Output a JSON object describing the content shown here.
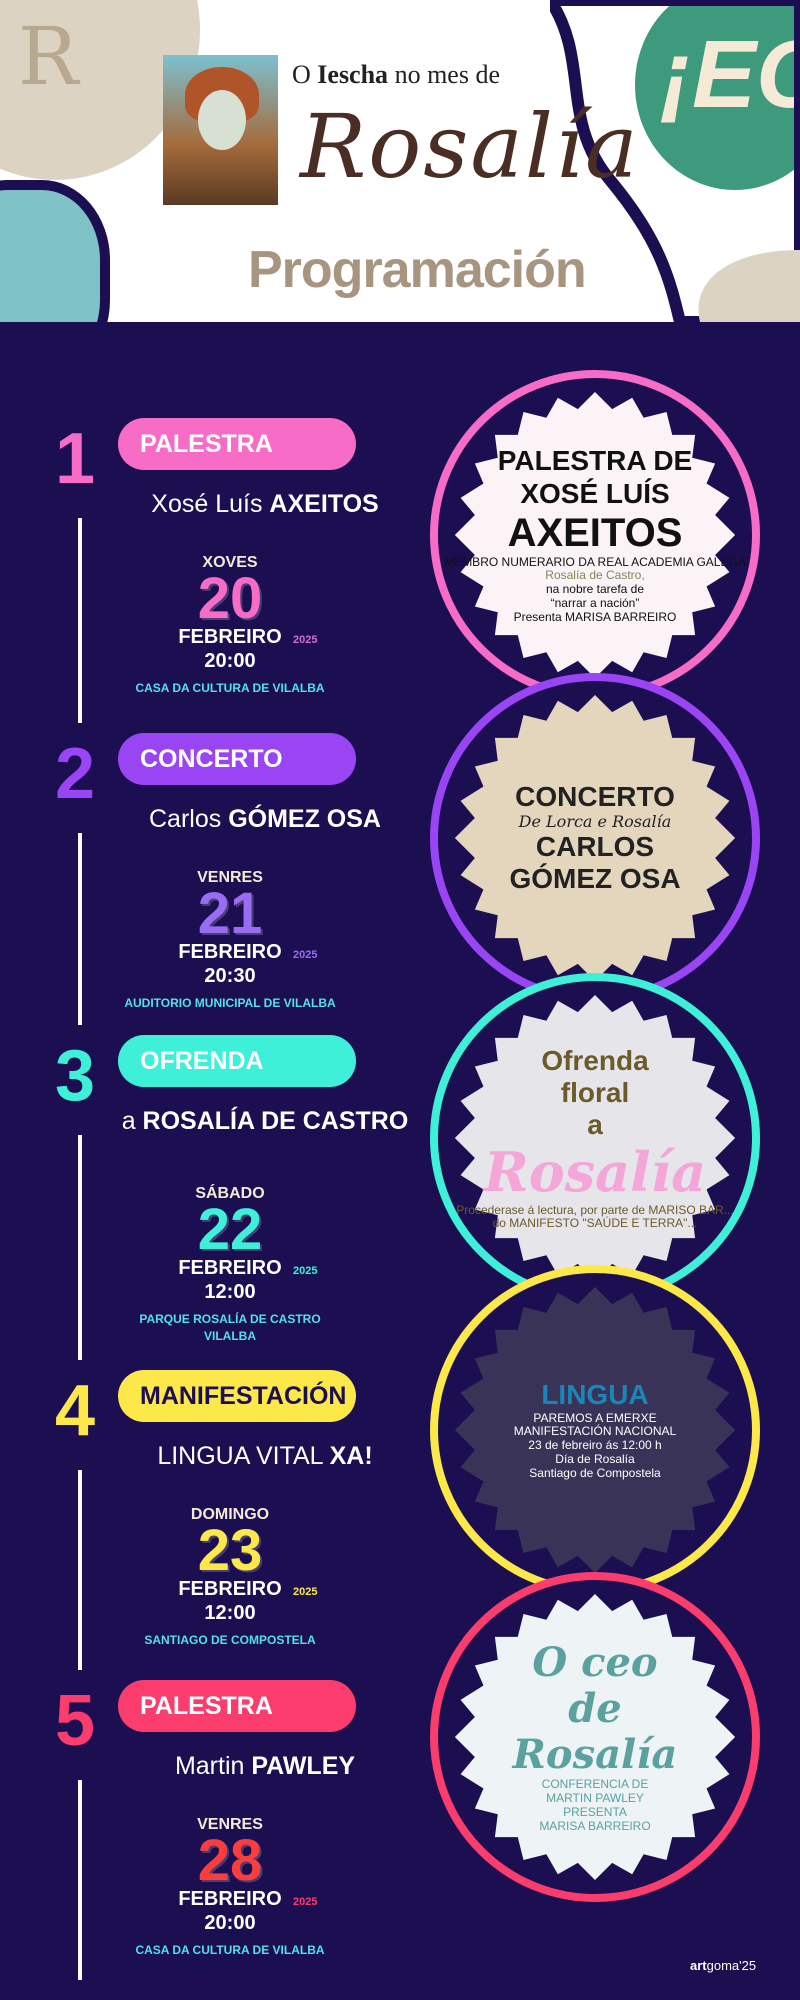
{
  "header": {
    "logo_letter": "R",
    "intro_prefix": "O ",
    "intro_bold": "Iescha",
    "intro_suffix": " no mes de",
    "script_title": "Rosalía",
    "program_title": "Programación",
    "badge_text": "¡EC"
  },
  "colors": {
    "background": "#1b0f52",
    "pink": "#f76cc6",
    "purple": "#9a45f4",
    "cyan": "#3ef0d8",
    "yellow": "#fde84a",
    "red": "#fb3d6e",
    "venue": "#53e0e8"
  },
  "events": [
    {
      "number": "1",
      "category": "PALESTRA",
      "title_pre": "Xosé Luís ",
      "title_bold": "AXEITOS",
      "weekday": "XOVES",
      "day": "20",
      "month": "FEBREIRO",
      "year": "2025",
      "time": "20:00",
      "venue": [
        "CASA DA CULTURA DE VILALBA"
      ],
      "color": "#f76cc6",
      "day_color": "#f76cc6",
      "year_color": "#d46ad0",
      "poster": {
        "bg": "#fbf3f6",
        "fg": "#111",
        "lines": [
          "PALESTRA DE",
          "XOSÉ LUÍS",
          "AXEITOS",
          "MEMBRO NUMERARIO DA REAL ACADEMIA GALEGA",
          "Rosalía de Castro,",
          "na nobre tarefa de",
          "“narrar a nación”",
          "Presenta MARISA BARREIRO"
        ]
      }
    },
    {
      "number": "2",
      "category": "CONCERTO",
      "title_pre": "Carlos ",
      "title_bold": "GÓMEZ OSA",
      "weekday": "VENRES",
      "day": "21",
      "month": "FEBREIRO",
      "year": "2025",
      "time": "20:30",
      "venue": [
        "AUDITORIO MUNICIPAL DE VILALBA"
      ],
      "color": "#9a45f4",
      "day_color": "#9a6cf4",
      "year_color": "#9a6cf4",
      "poster": {
        "bg": "#e3d6bd",
        "fg": "#222",
        "lines": [
          "CONCERTO",
          "De Lorca e Rosalía",
          "CARLOS",
          "GÓMEZ OSA"
        ]
      }
    },
    {
      "number": "3",
      "category": "OFRENDA",
      "title_pre": "a ",
      "title_bold": "ROSALÍA DE CASTRO",
      "weekday": "SÁBADO",
      "day": "22",
      "month": "FEBREIRO",
      "year": "2025",
      "time": "12:00",
      "venue": [
        "PARQUE ROSALÍA DE CASTRO",
        "VILALBA"
      ],
      "color": "#3ef0d8",
      "day_color": "#3ef0d8",
      "year_color": "#3ef0d8",
      "poster": {
        "bg": "#e6e6ea",
        "fg": "#6b5a2a",
        "lines": [
          "Ofrenda",
          "floral",
          "a",
          "Rosalía",
          "Procederase á lectura, por parte de MARISO BAR...",
          "do MANIFESTO \"SAÚDE E TERRA\"..."
        ]
      }
    },
    {
      "number": "4",
      "category": "MANIFESTACIÓN",
      "title_pre": "LINGUA VITAL ",
      "title_bold": "XA!",
      "weekday": "DOMINGO",
      "day": "23",
      "month": "FEBREIRO",
      "year": "2025",
      "time": "12:00",
      "venue": [
        "SANTIAGO DE COMPOSTELA"
      ],
      "color": "#fde84a",
      "day_color": "#fde84a",
      "year_color": "#fde84a",
      "poster": {
        "bg": "#3a3358",
        "fg": "#fff",
        "lines": [
          "LINGUA",
          "PAREMOS A EMERXE",
          "MANIFESTACIÓN NACIONAL",
          "23 de febreiro ás 12:00 h",
          "Día de Rosalía",
          "Santiago de Compostela"
        ]
      }
    },
    {
      "number": "5",
      "category": "PALESTRA",
      "title_pre": "Martin ",
      "title_bold": "PAWLEY",
      "weekday": "VENRES",
      "day": "28",
      "month": "FEBREIRO",
      "year": "2025",
      "time": "20:00",
      "venue": [
        "CASA DA CULTURA DE VILALBA"
      ],
      "color": "#fb3d6e",
      "day_color": "#fb3d3d",
      "year_color": "#fb3d6e",
      "poster": {
        "bg": "#eef3f5",
        "fg": "#5aa1a0",
        "lines": [
          "O ceo",
          "de",
          "Rosalía",
          "CONFERENCIA DE",
          "MARTIN PAWLEY",
          "PRESENTA",
          "MARISA BARREIRO"
        ]
      }
    }
  ],
  "credit": {
    "bold": "art",
    "rest": "goma'25"
  }
}
